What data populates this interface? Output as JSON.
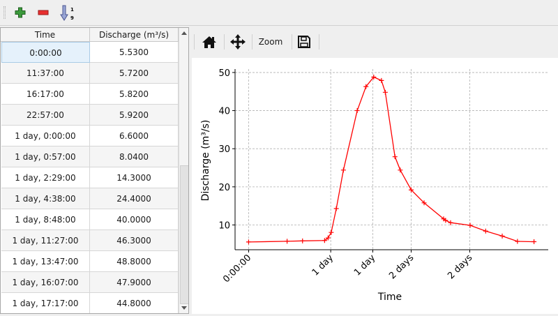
{
  "toolbar": {
    "add_icon": "green-plus-icon",
    "remove_icon": "red-minus-icon",
    "sort_icon": "sort-ascending-icon",
    "sort_digits": [
      "1",
      "9"
    ]
  },
  "table": {
    "columns": [
      "Time",
      "Discharge (m³/s)"
    ],
    "rows": [
      [
        "0:00:00",
        "5.5300"
      ],
      [
        "11:37:00",
        "5.7200"
      ],
      [
        "16:17:00",
        "5.8200"
      ],
      [
        "22:57:00",
        "5.9200"
      ],
      [
        "1 day, 0:00:00",
        "6.6000"
      ],
      [
        "1 day, 0:57:00",
        "8.0400"
      ],
      [
        "1 day, 2:29:00",
        "14.3000"
      ],
      [
        "1 day, 4:38:00",
        "24.4000"
      ],
      [
        "1 day, 8:48:00",
        "40.0000"
      ],
      [
        "1 day, 11:27:00",
        "46.3000"
      ],
      [
        "1 day, 13:47:00",
        "48.8000"
      ],
      [
        "1 day, 16:07:00",
        "47.9000"
      ],
      [
        "1 day, 17:17:00",
        "44.8000"
      ]
    ],
    "selected_row": 0
  },
  "chart_toolbar": {
    "home_icon": "home-icon",
    "pan_icon": "move-arrows-icon",
    "zoom_label": "Zoom",
    "save_icon": "floppy-disk-icon"
  },
  "chart_data": {
    "type": "line",
    "xlabel": "Time",
    "ylabel": "Discharge (m³/s)",
    "line_color": "#ff0000",
    "marker": "+",
    "grid": true,
    "grid_style": "dashed",
    "xlim_hours": [
      -4.1,
      90.5
    ],
    "ylim": [
      3.5,
      50.9
    ],
    "yticks": [
      10,
      20,
      30,
      40,
      50
    ],
    "xticks": [
      {
        "at": "0:00:00",
        "label": "0:00:00"
      },
      {
        "at": "1 day, 0:48:00",
        "label": "1 day"
      },
      {
        "at": "1 day, 13:30:00",
        "label": "1 day"
      },
      {
        "at": "2 days, 1:06:00",
        "label": "2 days"
      },
      {
        "at": "2 days, 18:48:00",
        "label": "2 days"
      }
    ],
    "points": [
      [
        "0:00:00",
        5.53
      ],
      [
        "11:37:00",
        5.72
      ],
      [
        "16:17:00",
        5.82
      ],
      [
        "22:57:00",
        5.92
      ],
      [
        "1 day, 0:00:00",
        6.6
      ],
      [
        "1 day, 0:57:00",
        8.04
      ],
      [
        "1 day, 2:29:00",
        14.3
      ],
      [
        "1 day, 4:38:00",
        24.4
      ],
      [
        "1 day, 8:48:00",
        40.0
      ],
      [
        "1 day, 11:27:00",
        46.3
      ],
      [
        "1 day, 13:47:00",
        48.8
      ],
      [
        "1 day, 16:07:00",
        47.9
      ],
      [
        "1 day, 17:17:00",
        44.8
      ],
      [
        "1 day, 20:12:00",
        27.9
      ],
      [
        "1 day, 21:48:00",
        24.4
      ],
      [
        "2 days, 1:06:00",
        19.2
      ],
      [
        "2 days, 5:00:00",
        15.8
      ],
      [
        "2 days, 10:54:00",
        11.6
      ],
      [
        "2 days, 11:30:00",
        11.2
      ],
      [
        "2 days, 13:00:00",
        10.6
      ],
      [
        "2 days, 18:54:00",
        9.9
      ],
      [
        "2 days, 23:36:00",
        8.4
      ],
      [
        "3 days, 4:36:00",
        7.1
      ],
      [
        "3 days, 9:12:00",
        5.7
      ],
      [
        "3 days, 14:12:00",
        5.6
      ]
    ]
  }
}
